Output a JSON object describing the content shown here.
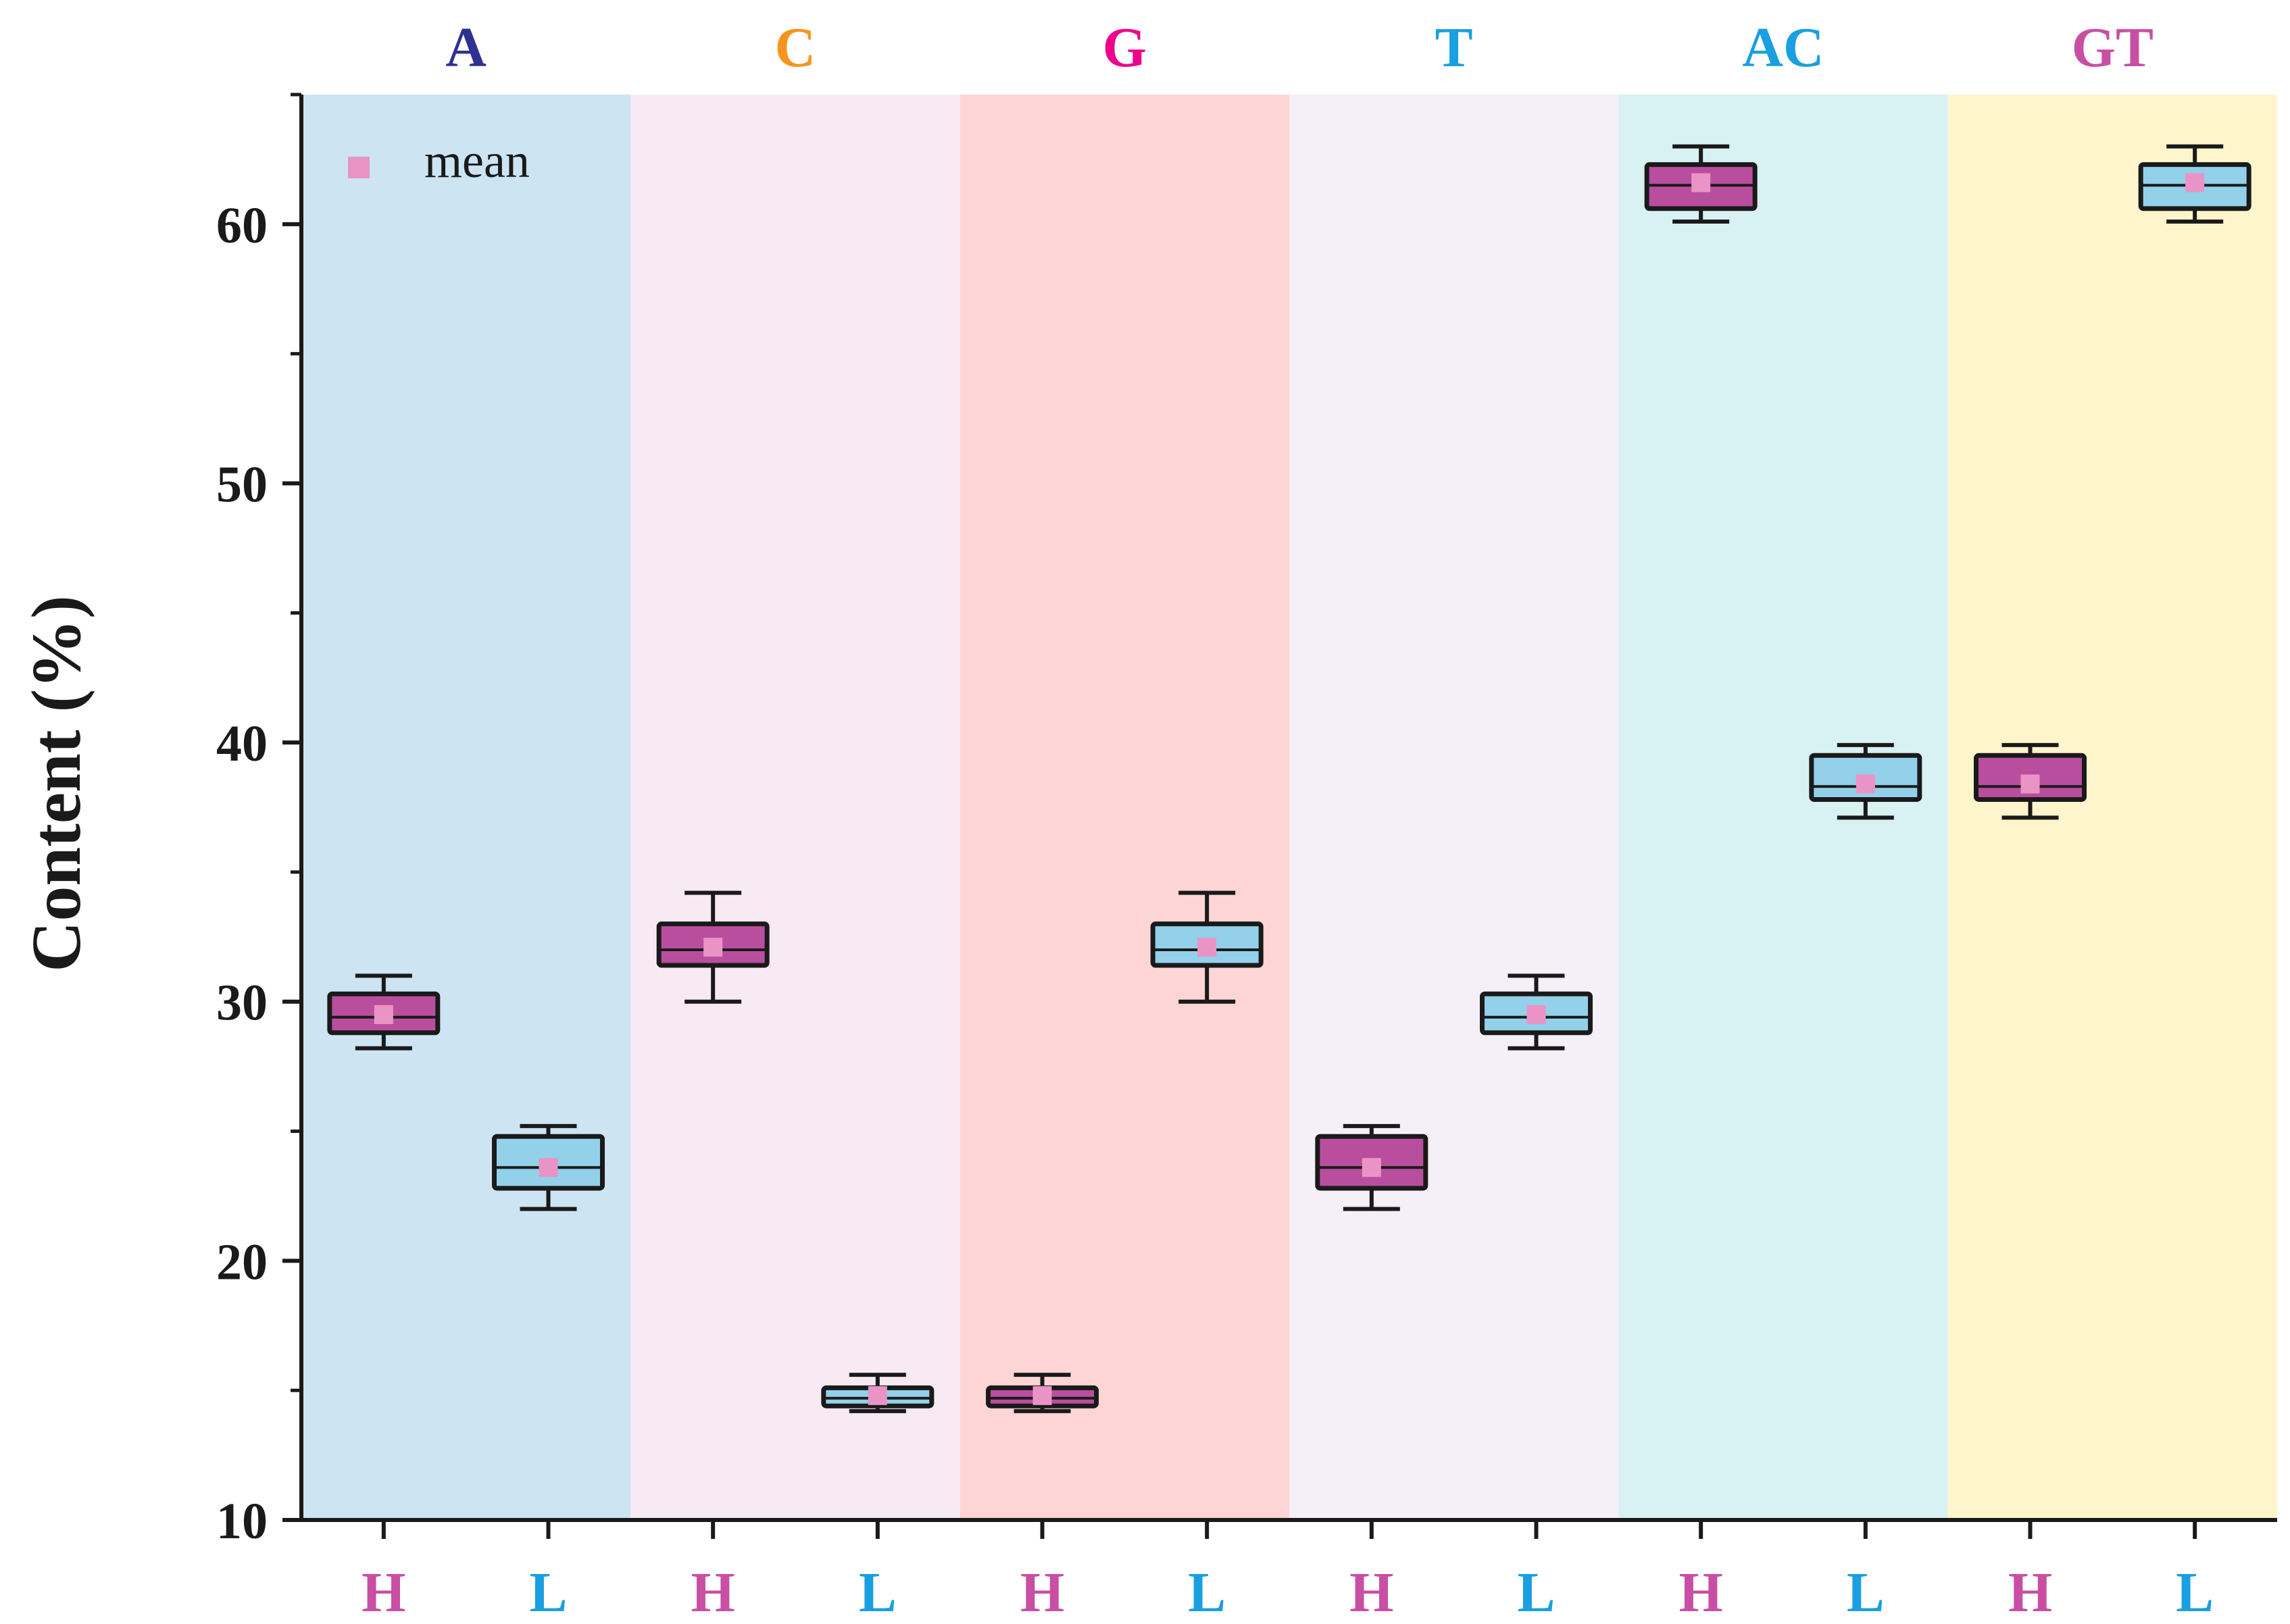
{
  "chart_data": {
    "type": "box",
    "ylabel": "Content (%)",
    "ylim": [
      10,
      65
    ],
    "yticks": [
      10,
      20,
      30,
      40,
      50,
      60
    ],
    "legend": {
      "marker": "square",
      "label": "mean",
      "placement": "top-left",
      "color": "#E994C5"
    },
    "colors": {
      "H_fill": "#B94E9E",
      "L_fill": "#93D0EA",
      "H_label": "#C84FA3",
      "L_label": "#1A9FE0",
      "mean_marker": "#E994C5",
      "box_edge": "#1A1A1A"
    },
    "panels": [
      {
        "title": "A",
        "title_color": "#2E3192",
        "bg": "#CDE4F2",
        "boxes": [
          {
            "group": "H",
            "whisker_low": 28.2,
            "q1": 28.8,
            "median": 29.4,
            "q3": 30.3,
            "whisker_high": 31.0,
            "mean": 29.5
          },
          {
            "group": "L",
            "whisker_low": 22.0,
            "q1": 22.8,
            "median": 23.6,
            "q3": 24.8,
            "whisker_high": 25.2,
            "mean": 23.6
          }
        ]
      },
      {
        "title": "C",
        "title_color": "#F7941D",
        "bg": "#F8EAF2",
        "boxes": [
          {
            "group": "H",
            "whisker_low": 30.0,
            "q1": 31.4,
            "median": 32.0,
            "q3": 33.0,
            "whisker_high": 34.2,
            "mean": 32.1
          },
          {
            "group": "L",
            "whisker_low": 14.2,
            "q1": 14.4,
            "median": 14.7,
            "q3": 15.1,
            "whisker_high": 15.6,
            "mean": 14.8
          }
        ]
      },
      {
        "title": "G",
        "title_color": "#EC008C",
        "bg": "#FDD5D5",
        "boxes": [
          {
            "group": "H",
            "whisker_low": 14.2,
            "q1": 14.4,
            "median": 14.7,
            "q3": 15.1,
            "whisker_high": 15.6,
            "mean": 14.8
          },
          {
            "group": "L",
            "whisker_low": 30.0,
            "q1": 31.4,
            "median": 32.0,
            "q3": 33.0,
            "whisker_high": 34.2,
            "mean": 32.1
          }
        ]
      },
      {
        "title": "T",
        "title_color": "#1A9FE0",
        "bg": "#F5EFF7",
        "boxes": [
          {
            "group": "H",
            "whisker_low": 22.0,
            "q1": 22.8,
            "median": 23.6,
            "q3": 24.8,
            "whisker_high": 25.2,
            "mean": 23.6
          },
          {
            "group": "L",
            "whisker_low": 28.2,
            "q1": 28.8,
            "median": 29.4,
            "q3": 30.3,
            "whisker_high": 31.0,
            "mean": 29.5
          }
        ]
      },
      {
        "title": "AC",
        "title_color": "#1A9FE0",
        "bg": "#D8F1F2",
        "boxes": [
          {
            "group": "H",
            "whisker_low": 60.1,
            "q1": 60.6,
            "median": 61.5,
            "q3": 62.3,
            "whisker_high": 63.0,
            "mean": 61.6
          },
          {
            "group": "L",
            "whisker_low": 37.1,
            "q1": 37.8,
            "median": 38.3,
            "q3": 39.5,
            "whisker_high": 39.9,
            "mean": 38.4
          }
        ]
      },
      {
        "title": "GT",
        "title_color": "#C84FA3",
        "bg": "#FEF5CC",
        "boxes": [
          {
            "group": "H",
            "whisker_low": 37.1,
            "q1": 37.8,
            "median": 38.3,
            "q3": 39.5,
            "whisker_high": 39.9,
            "mean": 38.4
          },
          {
            "group": "L",
            "whisker_low": 60.1,
            "q1": 60.6,
            "median": 61.5,
            "q3": 62.3,
            "whisker_high": 63.0,
            "mean": 61.6
          }
        ]
      }
    ]
  }
}
